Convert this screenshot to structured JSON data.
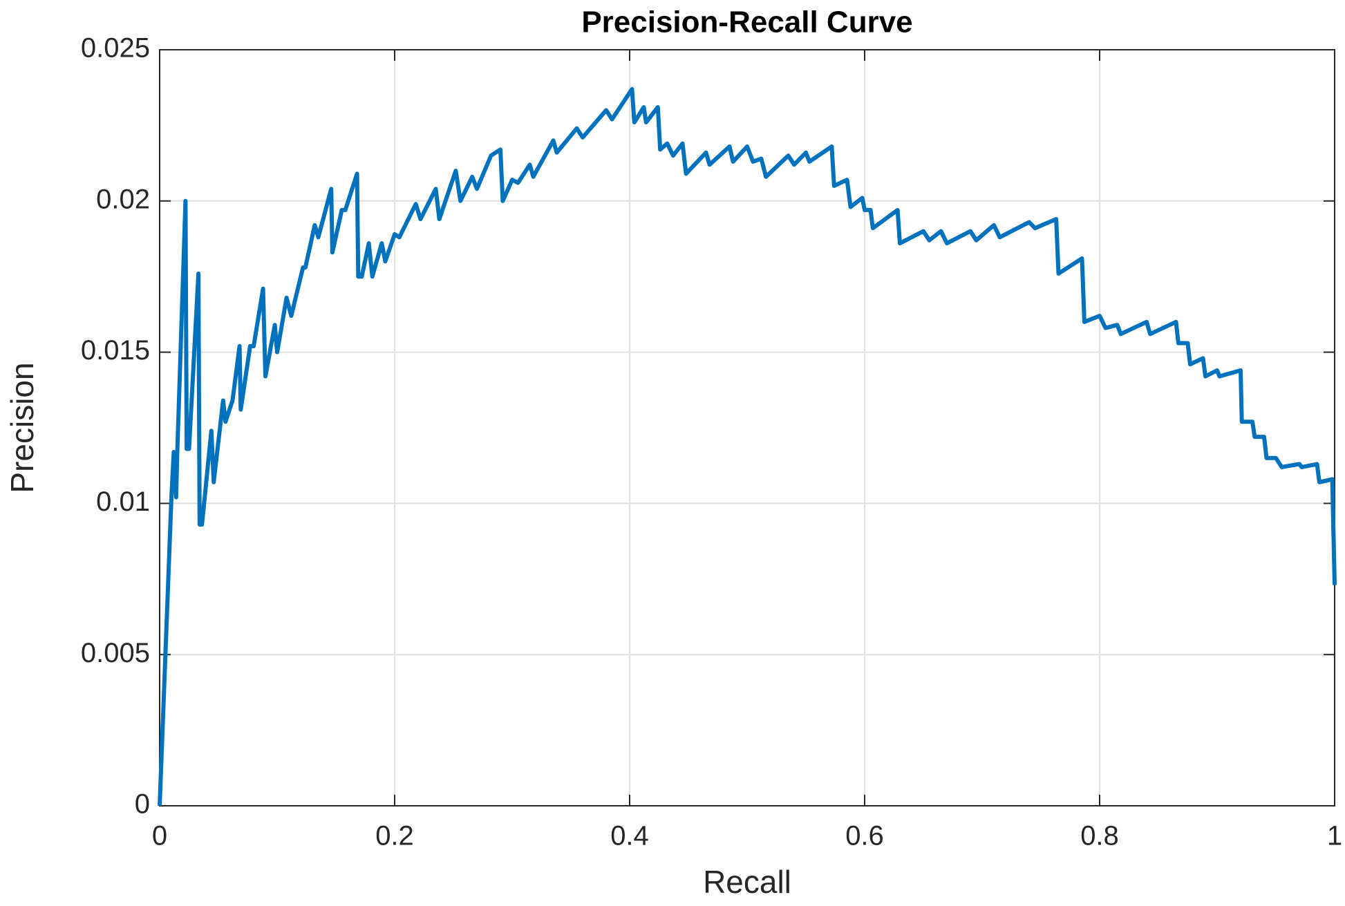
{
  "chart_data": {
    "type": "line",
    "title": "Precision-Recall Curve",
    "x_label": "Recall",
    "y_label": "Precision",
    "xlim": [
      0,
      1
    ],
    "ylim": [
      0,
      0.025
    ],
    "xticks": [
      0,
      0.2,
      0.4,
      0.6,
      0.8,
      1
    ],
    "yticks": [
      0,
      0.005,
      0.01,
      0.015,
      0.02,
      0.025
    ],
    "grid": true,
    "series": [
      {
        "color": "#0072bd",
        "x": [
          0.0,
          0.01,
          0.012,
          0.014,
          0.015,
          0.022,
          0.023,
          0.025,
          0.033,
          0.034,
          0.036,
          0.044,
          0.046,
          0.054,
          0.056,
          0.062,
          0.068,
          0.069,
          0.077,
          0.08,
          0.088,
          0.09,
          0.098,
          0.1,
          0.108,
          0.112,
          0.122,
          0.124,
          0.132,
          0.135,
          0.146,
          0.147,
          0.155,
          0.158,
          0.168,
          0.169,
          0.172,
          0.178,
          0.181,
          0.189,
          0.192,
          0.2,
          0.204,
          0.218,
          0.222,
          0.235,
          0.238,
          0.252,
          0.256,
          0.266,
          0.27,
          0.282,
          0.29,
          0.292,
          0.3,
          0.305,
          0.315,
          0.318,
          0.335,
          0.338,
          0.355,
          0.36,
          0.38,
          0.385,
          0.402,
          0.404,
          0.412,
          0.414,
          0.424,
          0.426,
          0.432,
          0.437,
          0.445,
          0.448,
          0.465,
          0.468,
          0.485,
          0.488,
          0.5,
          0.505,
          0.512,
          0.516,
          0.535,
          0.54,
          0.55,
          0.553,
          0.572,
          0.574,
          0.585,
          0.588,
          0.598,
          0.6,
          0.605,
          0.607,
          0.628,
          0.63,
          0.65,
          0.655,
          0.665,
          0.67,
          0.69,
          0.695,
          0.71,
          0.715,
          0.74,
          0.745,
          0.763,
          0.765,
          0.785,
          0.787,
          0.8,
          0.805,
          0.815,
          0.818,
          0.84,
          0.843,
          0.865,
          0.867,
          0.875,
          0.877,
          0.888,
          0.89,
          0.9,
          0.902,
          0.92,
          0.921,
          0.93,
          0.932,
          0.94,
          0.942,
          0.95,
          0.955,
          0.97,
          0.972,
          0.985,
          0.987,
          0.998,
          1.0
        ],
        "values": [
          0.0,
          0.0102,
          0.0117,
          0.0102,
          0.0117,
          0.02,
          0.0118,
          0.0118,
          0.0176,
          0.0093,
          0.0093,
          0.0124,
          0.0107,
          0.0134,
          0.0127,
          0.0134,
          0.0152,
          0.0131,
          0.0152,
          0.0152,
          0.0171,
          0.0142,
          0.0159,
          0.015,
          0.0168,
          0.0162,
          0.0178,
          0.0178,
          0.0192,
          0.0188,
          0.0204,
          0.0183,
          0.0197,
          0.0197,
          0.0209,
          0.0175,
          0.0175,
          0.0186,
          0.0175,
          0.0186,
          0.018,
          0.0189,
          0.0188,
          0.0199,
          0.0194,
          0.0204,
          0.0194,
          0.021,
          0.02,
          0.0208,
          0.0204,
          0.0215,
          0.0217,
          0.02,
          0.0207,
          0.0206,
          0.0212,
          0.0208,
          0.022,
          0.0216,
          0.0224,
          0.0221,
          0.023,
          0.0227,
          0.0237,
          0.0226,
          0.0231,
          0.0226,
          0.0231,
          0.0217,
          0.0219,
          0.0215,
          0.0219,
          0.0209,
          0.0216,
          0.0212,
          0.0218,
          0.0213,
          0.0218,
          0.0213,
          0.0214,
          0.0208,
          0.0215,
          0.0212,
          0.0216,
          0.0213,
          0.0218,
          0.0205,
          0.0207,
          0.0198,
          0.0201,
          0.0197,
          0.0197,
          0.0191,
          0.0197,
          0.0186,
          0.019,
          0.0187,
          0.019,
          0.0186,
          0.019,
          0.0187,
          0.0192,
          0.0188,
          0.0193,
          0.0191,
          0.0194,
          0.0176,
          0.0181,
          0.016,
          0.0162,
          0.0158,
          0.0159,
          0.0156,
          0.016,
          0.0156,
          0.016,
          0.0153,
          0.0153,
          0.0146,
          0.0148,
          0.0142,
          0.0144,
          0.0142,
          0.0144,
          0.0127,
          0.0127,
          0.0122,
          0.0122,
          0.0115,
          0.0115,
          0.0112,
          0.0113,
          0.0112,
          0.0113,
          0.0107,
          0.0108,
          0.0073
        ]
      }
    ]
  }
}
